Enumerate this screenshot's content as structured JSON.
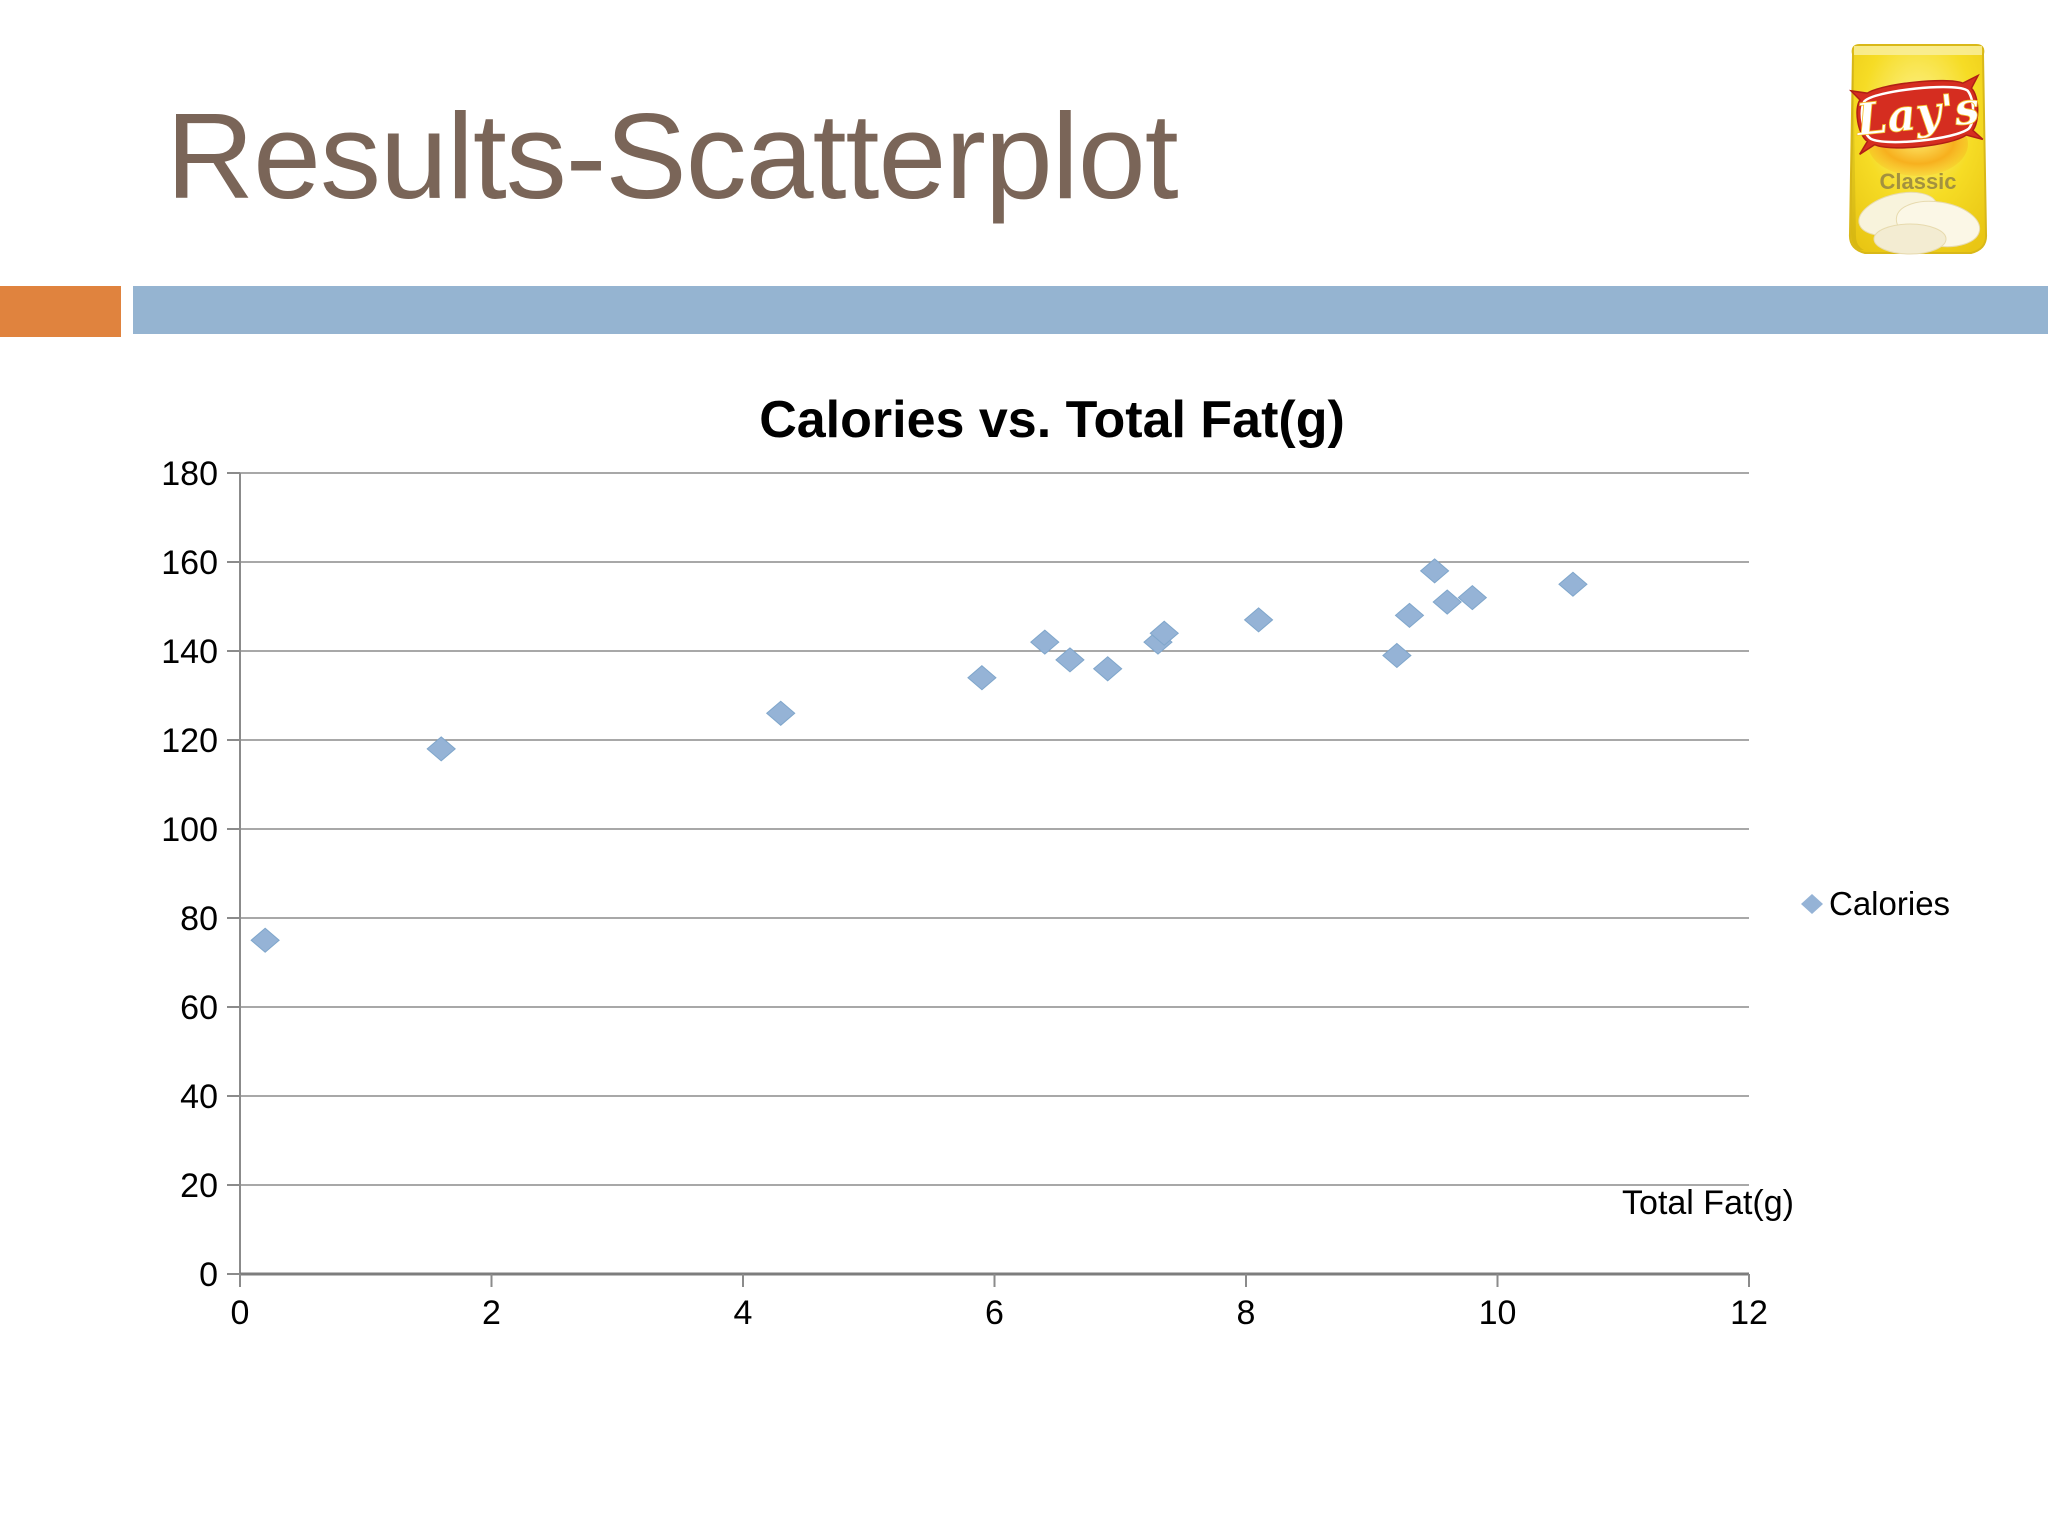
{
  "slide": {
    "title": "Results-Scatterplot",
    "accent_colors": {
      "orange_block": "#e0833e",
      "blue_band": "#95b4d1",
      "title_text": "#7a6558"
    }
  },
  "product_image": {
    "description": "Lay's Classic potato chips bag",
    "brand": "Lay's",
    "variant": "Classic"
  },
  "chart_data": {
    "type": "scatter",
    "title": "Calories vs. Total Fat(g)",
    "xlabel": "Total Fat(g)",
    "ylabel": "",
    "xlim": [
      0,
      12
    ],
    "ylim": [
      0,
      180
    ],
    "xticks": [
      0,
      2,
      4,
      6,
      8,
      10,
      12
    ],
    "yticks": [
      0,
      20,
      40,
      60,
      80,
      100,
      120,
      140,
      160,
      180
    ],
    "grid": "horizontal",
    "legend_position": "right-middle",
    "legend": [
      {
        "label": "Calories",
        "marker": "diamond",
        "marker_color": "#95b3d6"
      }
    ],
    "series": [
      {
        "name": "Calories",
        "points": [
          [
            0.2,
            75
          ],
          [
            1.6,
            118
          ],
          [
            4.3,
            126
          ],
          [
            5.9,
            134
          ],
          [
            6.4,
            142
          ],
          [
            6.6,
            138
          ],
          [
            6.9,
            136
          ],
          [
            7.3,
            142
          ],
          [
            7.35,
            144
          ],
          [
            8.1,
            147
          ],
          [
            9.2,
            139
          ],
          [
            9.3,
            148
          ],
          [
            9.5,
            158
          ],
          [
            9.6,
            151
          ],
          [
            9.8,
            152
          ],
          [
            10.6,
            155
          ]
        ]
      }
    ]
  }
}
